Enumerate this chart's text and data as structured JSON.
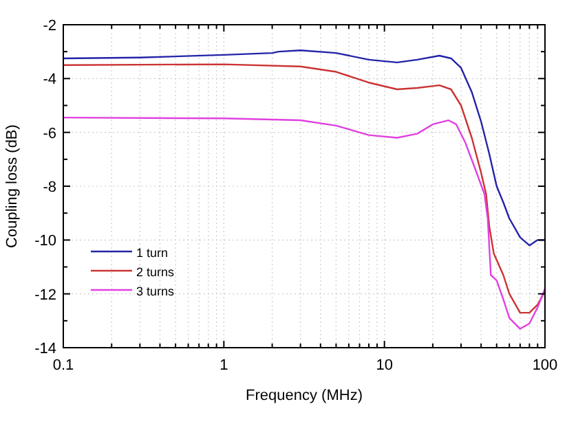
{
  "chart_data": {
    "type": "line",
    "xlabel": "Frequency (MHz)",
    "ylabel": "Coupling loss (dB)",
    "log": "x",
    "grid": true,
    "legend": "bottom left",
    "line_style": "solid",
    "marker": "none",
    "xlim": [
      0.1,
      100
    ],
    "ylim": [
      -14,
      -2
    ],
    "xticks": [
      0.1,
      {
        "value": 0.2,
        "label": null
      },
      {
        "value": 0.3,
        "label": null
      },
      {
        "value": 0.4,
        "label": null
      },
      {
        "value": 0.5,
        "label": null
      },
      {
        "value": 0.6,
        "label": null
      },
      {
        "value": 0.7,
        "label": null
      },
      {
        "value": 0.8,
        "label": null
      },
      {
        "value": 0.9,
        "label": null
      },
      1,
      {
        "value": 2,
        "label": null
      },
      {
        "value": 3,
        "label": null
      },
      {
        "value": 4,
        "label": null
      },
      {
        "value": 5,
        "label": null
      },
      {
        "value": 6,
        "label": null
      },
      {
        "value": 7,
        "label": null
      },
      {
        "value": 8,
        "label": null
      },
      {
        "value": 9,
        "label": null
      },
      10,
      {
        "value": 20,
        "label": null
      },
      {
        "value": 30,
        "label": null
      },
      {
        "value": 40,
        "label": null
      },
      {
        "value": 50,
        "label": null
      },
      {
        "value": 60,
        "label": null
      },
      {
        "value": 70,
        "label": null
      },
      {
        "value": 80,
        "label": null
      },
      {
        "value": 90,
        "label": null
      },
      100
    ],
    "yticks": [
      -14,
      {
        "value": -13,
        "label": null
      },
      -12,
      {
        "value": -11,
        "label": null
      },
      -10,
      {
        "value": -9,
        "label": null
      },
      -8,
      {
        "value": -7,
        "label": null
      },
      -6,
      {
        "value": -5,
        "label": null
      },
      -4,
      {
        "value": -3,
        "label": null
      },
      -2
    ],
    "series": [
      {
        "name": "1 turn",
        "color": "#2323a8",
        "x": [
          0.1,
          0.3,
          1,
          2,
          2.2,
          3,
          5,
          8,
          12,
          16,
          22,
          26,
          30,
          35,
          40,
          45,
          50,
          55,
          60,
          70,
          80,
          90,
          100
        ],
        "values": [
          -3.25,
          -3.22,
          -3.12,
          -3.05,
          -3.0,
          -2.95,
          -3.05,
          -3.3,
          -3.4,
          -3.3,
          -3.15,
          -3.25,
          -3.6,
          -4.5,
          -5.6,
          -6.8,
          -8.0,
          -8.6,
          -9.2,
          -9.9,
          -10.2,
          -10.0,
          -10.0
        ]
      },
      {
        "name": "2 turns",
        "color": "#cc3333",
        "x": [
          0.1,
          1,
          3,
          5,
          8,
          12,
          16,
          22,
          26,
          30,
          35,
          40,
          43,
          45,
          48,
          55,
          60,
          70,
          80,
          90,
          100
        ],
        "values": [
          -3.5,
          -3.47,
          -3.55,
          -3.75,
          -4.15,
          -4.4,
          -4.35,
          -4.25,
          -4.4,
          -5.0,
          -6.2,
          -7.5,
          -8.3,
          -9.5,
          -10.5,
          -11.3,
          -12.0,
          -12.7,
          -12.7,
          -12.4,
          -11.9
        ]
      },
      {
        "name": "3 turns",
        "color": "#e040e0",
        "x": [
          0.1,
          1,
          3,
          5,
          8,
          12,
          16,
          20,
          25,
          28,
          32,
          37,
          42,
          44,
          46,
          50,
          55,
          60,
          70,
          80,
          90,
          100
        ],
        "values": [
          -5.45,
          -5.48,
          -5.55,
          -5.75,
          -6.1,
          -6.2,
          -6.05,
          -5.7,
          -5.55,
          -5.7,
          -6.4,
          -7.4,
          -8.3,
          -9.2,
          -11.3,
          -11.5,
          -12.2,
          -12.9,
          -13.3,
          -13.1,
          -12.5,
          -11.8
        ]
      }
    ]
  }
}
